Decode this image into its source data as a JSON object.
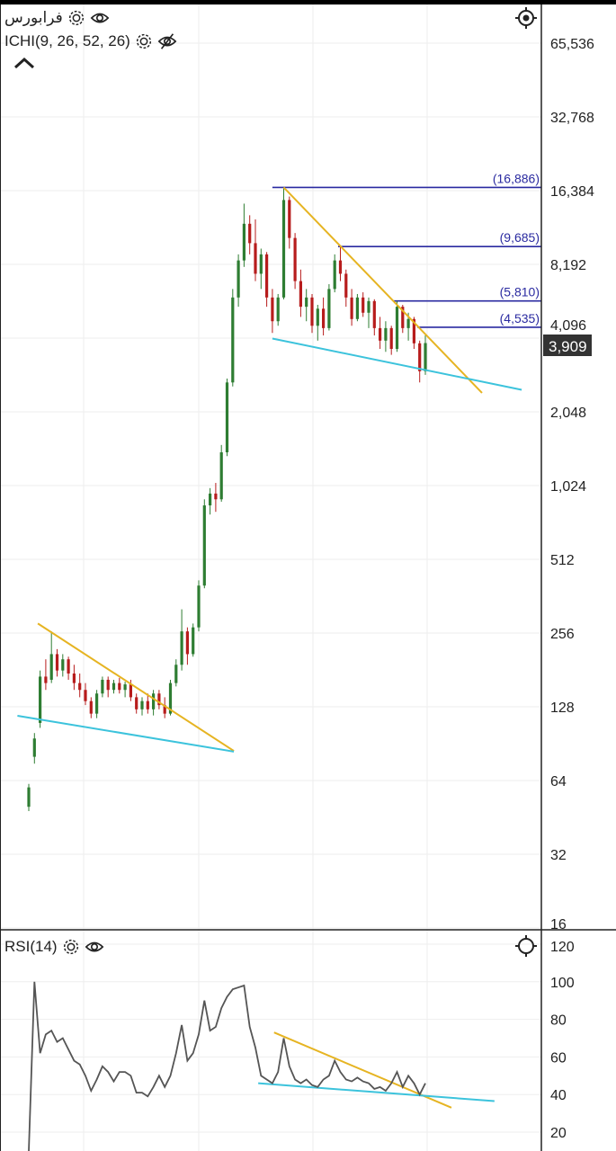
{
  "header": {
    "symbol": "فرابورس",
    "indicator": "ICHI(9, 26, 52, 26)",
    "rsi_label": "RSI(14)",
    "last_price": "3,909"
  },
  "icons": [
    "gear-icon",
    "eye-icon",
    "eye-off-icon",
    "chevron-up-icon",
    "crosshair-icon"
  ],
  "colors": {
    "up": "#2e7d32",
    "down": "#b71c1c",
    "trend_down": "#e6b422",
    "trend_support": "#3cc3dc",
    "fib": "#2a2aa0",
    "rsi": "#555555",
    "price_tag": "#333333"
  },
  "chart_data": [
    {
      "type": "candlestick",
      "scale": "log2",
      "y_ticks": [
        "65,536",
        "32,768",
        "16,384",
        "8,192",
        "4,096",
        "2,048",
        "1,024",
        "512",
        "256",
        "128",
        "64",
        "32",
        "16"
      ],
      "y_tick_values": [
        65536,
        32768,
        16384,
        8192,
        4096,
        2048,
        1024,
        512,
        256,
        128,
        64,
        32,
        16
      ],
      "ohlc": [
        [
          50,
          62,
          48,
          60
        ],
        [
          80,
          100,
          75,
          95
        ],
        [
          110,
          180,
          105,
          170
        ],
        [
          170,
          200,
          150,
          160
        ],
        [
          165,
          260,
          160,
          210
        ],
        [
          210,
          220,
          170,
          180
        ],
        [
          180,
          210,
          170,
          200
        ],
        [
          200,
          205,
          165,
          175
        ],
        [
          175,
          190,
          150,
          160
        ],
        [
          160,
          175,
          140,
          150
        ],
        [
          150,
          160,
          130,
          135
        ],
        [
          135,
          140,
          115,
          120
        ],
        [
          120,
          150,
          115,
          145
        ],
        [
          145,
          170,
          140,
          165
        ],
        [
          165,
          170,
          140,
          150
        ],
        [
          150,
          165,
          145,
          160
        ],
        [
          160,
          168,
          145,
          150
        ],
        [
          150,
          162,
          140,
          158
        ],
        [
          158,
          165,
          135,
          140
        ],
        [
          140,
          145,
          120,
          125
        ],
        [
          125,
          140,
          118,
          135
        ],
        [
          135,
          145,
          120,
          125
        ],
        [
          125,
          150,
          118,
          145
        ],
        [
          145,
          150,
          125,
          130
        ],
        [
          130,
          140,
          115,
          120
        ],
        [
          120,
          165,
          118,
          160
        ],
        [
          160,
          200,
          155,
          190
        ],
        [
          190,
          320,
          180,
          260
        ],
        [
          260,
          270,
          190,
          210
        ],
        [
          210,
          280,
          205,
          270
        ],
        [
          270,
          420,
          260,
          400
        ],
        [
          400,
          900,
          390,
          850
        ],
        [
          850,
          1000,
          780,
          950
        ],
        [
          950,
          1050,
          800,
          900
        ],
        [
          900,
          1500,
          880,
          1400
        ],
        [
          1400,
          2800,
          1350,
          2700
        ],
        [
          2700,
          6500,
          2600,
          6000
        ],
        [
          6000,
          9000,
          5500,
          8500
        ],
        [
          8500,
          14500,
          8000,
          12000
        ],
        [
          12000,
          13000,
          9000,
          10000
        ],
        [
          10000,
          12500,
          7000,
          7500
        ],
        [
          7500,
          9500,
          6500,
          9000
        ],
        [
          9000,
          9200,
          5500,
          6000
        ],
        [
          6000,
          6500,
          4300,
          4800
        ],
        [
          4800,
          6200,
          4600,
          6000
        ],
        [
          6000,
          16886,
          5900,
          15000
        ],
        [
          15000,
          15500,
          9500,
          10500
        ],
        [
          10500,
          11000,
          6500,
          7000
        ],
        [
          7000,
          7800,
          5000,
          5500
        ],
        [
          5500,
          6500,
          4800,
          6000
        ],
        [
          6000,
          6200,
          4300,
          4600
        ],
        [
          4600,
          5600,
          4000,
          5400
        ],
        [
          5400,
          6000,
          4200,
          4500
        ],
        [
          4500,
          6800,
          4400,
          6500
        ],
        [
          6500,
          9000,
          6300,
          8500
        ],
        [
          8500,
          9685,
          7000,
          7500
        ],
        [
          7500,
          7800,
          5500,
          6000
        ],
        [
          6000,
          6500,
          4600,
          4900
        ],
        [
          4900,
          6200,
          4800,
          6000
        ],
        [
          6000,
          6300,
          5000,
          5200
        ],
        [
          5200,
          6000,
          4500,
          5800
        ],
        [
          5800,
          5900,
          4200,
          4500
        ],
        [
          4500,
          5000,
          3700,
          4000
        ],
        [
          4000,
          4800,
          3600,
          4500
        ],
        [
          4500,
          4600,
          3500,
          3700
        ],
        [
          3700,
          5810,
          3600,
          5500
        ],
        [
          5500,
          5600,
          4300,
          4500
        ],
        [
          4500,
          5200,
          4000,
          4900
        ],
        [
          4900,
          5000,
          3700,
          3900
        ],
        [
          3900,
          4000,
          2700,
          3000
        ],
        [
          3000,
          4200,
          2900,
          3909
        ]
      ],
      "last": 3909,
      "trendlines": [
        {
          "kind": "resistance",
          "from": [
            45,
            16886
          ],
          "to": [
            80,
            2447
          ]
        },
        {
          "kind": "support",
          "from": [
            43,
            4080
          ],
          "to": [
            87,
            2520
          ]
        },
        {
          "kind": "resistance",
          "from": [
            1.6,
            280
          ],
          "to": [
            36.2,
            84.5
          ]
        },
        {
          "kind": "support",
          "from": [
            -2,
            117.6
          ],
          "to": [
            36.2,
            84
          ]
        }
      ],
      "levels": [
        {
          "label": "(16,886)",
          "value": 16886,
          "from": 43
        },
        {
          "label": "(9,685)",
          "value": 9685,
          "from": 54.6
        },
        {
          "label": "(5,810)",
          "value": 5810,
          "from": 64.4
        },
        {
          "label": "(4,535)",
          "value": 4535,
          "from": 68.6
        }
      ]
    },
    {
      "type": "line",
      "name": "RSI(14)",
      "y_ticks": [
        "120",
        "100",
        "80",
        "60",
        "40",
        "20"
      ],
      "y_tick_values": [
        120,
        100,
        80,
        60,
        40,
        20
      ],
      "values": [
        0,
        100,
        62,
        72,
        74,
        68,
        70,
        64,
        58,
        56,
        50,
        42,
        48,
        55,
        52,
        47,
        52,
        52,
        50,
        41,
        41,
        39,
        44,
        50,
        44,
        50,
        62,
        77,
        58,
        62,
        72,
        90,
        74,
        76,
        86,
        92,
        96,
        97,
        98,
        76,
        65,
        50,
        48,
        46,
        52,
        70,
        55,
        48,
        46,
        48,
        45,
        44,
        48,
        50,
        58,
        52,
        48,
        47,
        49,
        47,
        46,
        43,
        44,
        42,
        46,
        52,
        44,
        50,
        46,
        40,
        46
      ],
      "trendlines": [
        {
          "kind": "resistance",
          "from": [
            43.3,
            73
          ],
          "to": [
            74.6,
            33
          ]
        },
        {
          "kind": "support",
          "from": [
            40.5,
            46
          ],
          "to": [
            82.2,
            36.5
          ]
        }
      ]
    }
  ]
}
